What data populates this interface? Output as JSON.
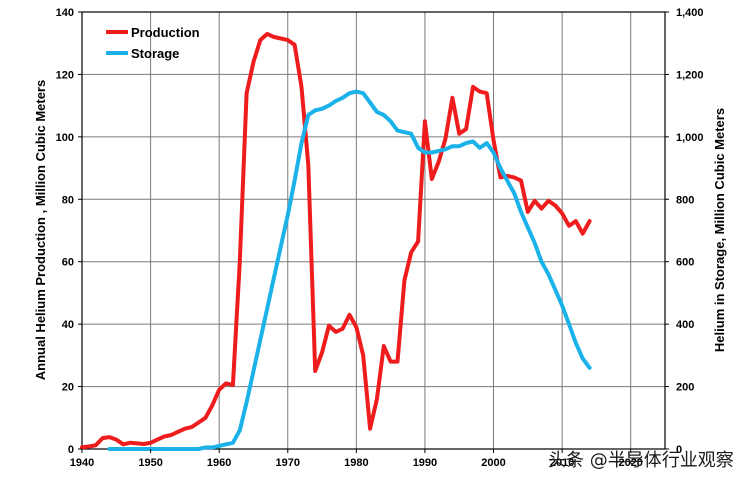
{
  "chart_data": {
    "type": "line",
    "xlabel": "",
    "ylabel_left": "Annual Helium Production , Million Cubic Meters",
    "ylabel_right": "Helium in Storage, Million Cubic Meters",
    "xlim": [
      1940,
      2025
    ],
    "ylim_left": [
      0,
      140
    ],
    "ylim_right": [
      0,
      1400
    ],
    "x_ticks": [
      1940,
      1950,
      1960,
      1970,
      1980,
      1990,
      2000,
      2010,
      2020
    ],
    "x_tick_labels": [
      "1940",
      "1950",
      "1960",
      "1970",
      "1980",
      "1990",
      "2000",
      "2010",
      "2020"
    ],
    "y_ticks_left": [
      0,
      20,
      40,
      60,
      80,
      100,
      120,
      140
    ],
    "y_tick_labels_left": [
      "0",
      "20",
      "40",
      "60",
      "80",
      "100",
      "120",
      "140"
    ],
    "y_ticks_right": [
      0,
      200,
      400,
      600,
      800,
      1000,
      1200,
      1400
    ],
    "y_tick_labels_right": [
      "0",
      "200",
      "400",
      "600",
      "800",
      "1,000",
      "1,200",
      "1,400"
    ],
    "grid": true,
    "legend_position": "top-left",
    "series": [
      {
        "name": "Production",
        "axis": "left",
        "color": "#ee1c1c",
        "x": [
          1940,
          1941,
          1942,
          1943,
          1944,
          1945,
          1946,
          1947,
          1948,
          1949,
          1950,
          1951,
          1952,
          1953,
          1954,
          1955,
          1956,
          1957,
          1958,
          1959,
          1960,
          1961,
          1962,
          1963,
          1964,
          1965,
          1966,
          1967,
          1968,
          1969,
          1970,
          1971,
          1972,
          1973,
          1974,
          1975,
          1976,
          1977,
          1978,
          1979,
          1980,
          1981,
          1982,
          1983,
          1984,
          1985,
          1986,
          1987,
          1988,
          1989,
          1990,
          1991,
          1992,
          1993,
          1994,
          1995,
          1996,
          1997,
          1998,
          1999,
          2000,
          2001,
          2002,
          2003,
          2004,
          2005,
          2006,
          2007,
          2008,
          2009,
          2010,
          2011,
          2012,
          2013,
          2014
        ],
        "values": [
          0.5,
          0.8,
          1.2,
          3.5,
          3.8,
          3.0,
          1.5,
          2.0,
          1.8,
          1.6,
          2.0,
          3.0,
          4.0,
          4.5,
          5.5,
          6.5,
          7.0,
          8.5,
          10.0,
          14.0,
          19.0,
          21.0,
          20.5,
          60.0,
          114.0,
          124.0,
          131.0,
          133.0,
          132.0,
          131.5,
          131.0,
          129.5,
          116.0,
          91.0,
          25.0,
          31.0,
          39.5,
          37.5,
          38.5,
          43.0,
          39.0,
          30.0,
          6.5,
          16.0,
          33.0,
          28.0,
          28.0,
          54.0,
          63.0,
          66.5,
          105.0,
          86.5,
          92.0,
          99.5,
          112.5,
          101.0,
          102.5,
          116.0,
          114.5,
          114.0,
          99.0,
          87.0,
          87.5,
          87.0,
          86.0,
          76.0,
          79.5,
          77.0,
          79.5,
          78.0,
          75.5,
          71.5,
          73.0,
          69.0,
          73.0
        ]
      },
      {
        "name": "Storage",
        "axis": "right",
        "color": "#1ab2e8",
        "x": [
          1944,
          1945,
          1946,
          1947,
          1948,
          1953,
          1955,
          1957,
          1958,
          1959,
          1960,
          1961,
          1962,
          1963,
          1964,
          1965,
          1966,
          1967,
          1968,
          1969,
          1970,
          1971,
          1972,
          1973,
          1974,
          1975,
          1976,
          1977,
          1978,
          1979,
          1980,
          1981,
          1982,
          1983,
          1984,
          1985,
          1986,
          1987,
          1988,
          1989,
          1990,
          1991,
          1992,
          1993,
          1994,
          1995,
          1996,
          1997,
          1998,
          1999,
          2000,
          2001,
          2002,
          2003,
          2004,
          2005,
          2006,
          2007,
          2008,
          2009,
          2010,
          2011,
          2012,
          2013,
          2014
        ],
        "values": [
          0,
          0,
          0,
          0,
          0,
          0,
          0,
          0,
          5,
          5,
          10,
          15,
          20,
          60,
          150,
          250,
          350,
          450,
          550,
          650,
          750,
          860,
          980,
          1070,
          1085,
          1090,
          1100,
          1115,
          1125,
          1140,
          1145,
          1140,
          1110,
          1080,
          1070,
          1050,
          1020,
          1015,
          1010,
          965,
          950,
          950,
          955,
          960,
          970,
          970,
          980,
          985,
          965,
          980,
          950,
          900,
          860,
          820,
          760,
          710,
          660,
          600,
          560,
          510,
          460,
          400,
          340,
          290,
          260
        ]
      }
    ],
    "watermark_text": "头条 @半导体行业观察"
  }
}
